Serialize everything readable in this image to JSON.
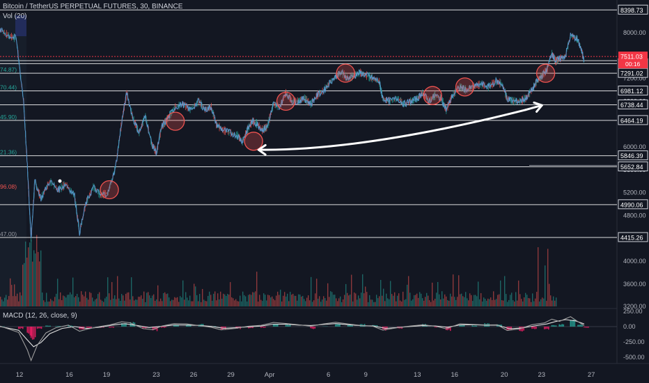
{
  "header": {
    "title": "Bitcoin / TetherUS PERPETUAL FUTURES, 30, BINANCE",
    "volume_label": "Vol (20)",
    "macd_label": "MACD (12, 26, close, 9)"
  },
  "colors": {
    "background": "#131722",
    "up": "#26a69a",
    "down": "#ef5350",
    "price_line": "#5b9bd5",
    "level_line": "#ffffff",
    "macd_line": "#9e9e9e",
    "signal_line": "#e0e0e0",
    "hist_negative": "#e91e63",
    "current_price_tag": "#f23645",
    "marker_circle": "#ef5350"
  },
  "chart_data": [
    {
      "type": "line",
      "name": "price",
      "x_ticks": [
        "12",
        "16",
        "19",
        "23",
        "26",
        "29",
        "Apr",
        "6",
        "9",
        "13",
        "16",
        "20",
        "23",
        "27"
      ],
      "x_tick_days": [
        12,
        16,
        19,
        23,
        26,
        29,
        32,
        37,
        40,
        44,
        47,
        51,
        54,
        58
      ],
      "y_axis_ticks": [
        "8000.00",
        "7600.00",
        "7200.00",
        "6800.00",
        "6000.00",
        "5600.00",
        "5200.00",
        "4800.00",
        "4000.00",
        "3600.00",
        "3200.00"
      ],
      "ylim": [
        3200,
        8400
      ],
      "price_points": [
        [
          10.5,
          8050
        ],
        [
          11.2,
          7950
        ],
        [
          11.8,
          7900
        ],
        [
          12.4,
          6800
        ],
        [
          12.7,
          5650
        ],
        [
          13.0,
          4400
        ],
        [
          13.3,
          5400
        ],
        [
          13.8,
          5100
        ],
        [
          14.5,
          5400
        ],
        [
          15.2,
          5250
        ],
        [
          15.8,
          5350
        ],
        [
          16.5,
          5150
        ],
        [
          16.9,
          4500
        ],
        [
          17.4,
          5000
        ],
        [
          18.0,
          5300
        ],
        [
          18.6,
          5150
        ],
        [
          19.2,
          5200
        ],
        [
          19.8,
          5650
        ],
        [
          20.3,
          6450
        ],
        [
          20.7,
          6950
        ],
        [
          21.2,
          6500
        ],
        [
          21.7,
          6250
        ],
        [
          22.2,
          6550
        ],
        [
          22.7,
          6050
        ],
        [
          23.1,
          5900
        ],
        [
          23.5,
          6350
        ],
        [
          24.0,
          6500
        ],
        [
          24.6,
          6700
        ],
        [
          25.2,
          6750
        ],
        [
          25.8,
          6650
        ],
        [
          26.5,
          6800
        ],
        [
          27.0,
          6650
        ],
        [
          27.5,
          6700
        ],
        [
          27.9,
          6400
        ],
        [
          28.4,
          6300
        ],
        [
          29.0,
          6250
        ],
        [
          29.6,
          6200
        ],
        [
          30.0,
          6100
        ],
        [
          30.4,
          6300
        ],
        [
          30.8,
          6450
        ],
        [
          31.2,
          6400
        ],
        [
          31.6,
          6300
        ],
        [
          32.0,
          6350
        ],
        [
          32.5,
          6750
        ],
        [
          33.0,
          6700
        ],
        [
          33.5,
          6950
        ],
        [
          34.0,
          6800
        ],
        [
          34.5,
          6800
        ],
        [
          35.0,
          6850
        ],
        [
          35.5,
          6750
        ],
        [
          36.0,
          6900
        ],
        [
          36.6,
          7000
        ],
        [
          37.1,
          7150
        ],
        [
          37.6,
          7250
        ],
        [
          38.0,
          7300
        ],
        [
          38.5,
          7200
        ],
        [
          39.0,
          7250
        ],
        [
          39.5,
          7300
        ],
        [
          40.0,
          7250
        ],
        [
          40.5,
          7200
        ],
        [
          41.0,
          7150
        ],
        [
          41.3,
          6850
        ],
        [
          41.8,
          6800
        ],
        [
          42.5,
          6850
        ],
        [
          43.0,
          6750
        ],
        [
          43.6,
          6800
        ],
        [
          44.1,
          6850
        ],
        [
          44.5,
          6950
        ],
        [
          45.0,
          6800
        ],
        [
          45.5,
          6900
        ],
        [
          46.0,
          6850
        ],
        [
          46.4,
          6650
        ],
        [
          46.9,
          6900
        ],
        [
          47.5,
          7050
        ],
        [
          48.0,
          7000
        ],
        [
          48.6,
          7050
        ],
        [
          49.2,
          7100
        ],
        [
          49.8,
          7050
        ],
        [
          50.4,
          7150
        ],
        [
          50.9,
          7100
        ],
        [
          51.3,
          6850
        ],
        [
          51.8,
          6800
        ],
        [
          52.3,
          6800
        ],
        [
          52.8,
          6850
        ],
        [
          53.3,
          7000
        ],
        [
          53.7,
          7150
        ],
        [
          54.1,
          7250
        ],
        [
          54.5,
          7350
        ],
        [
          54.9,
          7650
        ],
        [
          55.2,
          7500
        ],
        [
          55.6,
          7550
        ],
        [
          56.0,
          7600
        ],
        [
          56.4,
          7950
        ],
        [
          56.9,
          7900
        ],
        [
          57.2,
          7750
        ],
        [
          57.5,
          7500
        ]
      ],
      "horizontal_levels": [
        "8398.73",
        "7459.35",
        "7291.02",
        "6981.12",
        "6738.44",
        "6464.19",
        "5846.39",
        "5652.84",
        "4990.06",
        "4415.26"
      ],
      "level_values": [
        8398.73,
        7511.03,
        7459.35,
        7291.02,
        6981.12,
        6738.44,
        6464.19,
        5846.39,
        5652.84,
        4990.06,
        4415.26
      ],
      "current_price": "7511.03",
      "countdown": "00:16",
      "left_fib_labels": [
        "74.87)",
        "70.44)",
        "45.90)",
        "21.36)",
        "96.08)",
        "47.00)"
      ],
      "left_fib_values": [
        7291.02,
        6981.12,
        6464.19,
        5846.39,
        5246,
        4415.26
      ],
      "marker_points": [
        [
          19.3,
          5250
        ],
        [
          24.6,
          6450
        ],
        [
          30.9,
          6100
        ],
        [
          33.5,
          6800
        ],
        [
          38.3,
          7291
        ],
        [
          45.3,
          6900
        ],
        [
          47.9,
          7050
        ],
        [
          54.4,
          7290
        ]
      ],
      "arrows": [
        {
          "from": [
            52.8,
            6650
          ],
          "to": [
            31.3,
            5950
          ]
        },
        {
          "from": [
            52.8,
            6650
          ],
          "to": [
            54.1,
            6730
          ]
        }
      ]
    },
    {
      "type": "bar",
      "name": "volume",
      "series": [
        {
          "name": "Vol (20)",
          "values": []
        }
      ]
    },
    {
      "type": "line",
      "name": "macd",
      "y_axis_ticks": [
        "250.00",
        "0.00",
        "-250.00",
        "-500.00"
      ],
      "ylim": [
        -550,
        300
      ],
      "macd_points": [
        [
          10.5,
          10
        ],
        [
          12.0,
          -100
        ],
        [
          12.7,
          -380
        ],
        [
          13.0,
          -550
        ],
        [
          13.5,
          -300
        ],
        [
          14.2,
          -100
        ],
        [
          15.0,
          -20
        ],
        [
          16.0,
          20
        ],
        [
          16.9,
          -80
        ],
        [
          17.5,
          -40
        ],
        [
          18.5,
          0
        ],
        [
          19.3,
          30
        ],
        [
          20.3,
          80
        ],
        [
          21.0,
          60
        ],
        [
          22.0,
          -30
        ],
        [
          22.8,
          -50
        ],
        [
          23.5,
          10
        ],
        [
          24.5,
          50
        ],
        [
          25.5,
          40
        ],
        [
          26.5,
          20
        ],
        [
          27.5,
          -10
        ],
        [
          28.3,
          -50
        ],
        [
          29.5,
          -30
        ],
        [
          30.5,
          10
        ],
        [
          31.5,
          20
        ],
        [
          32.5,
          70
        ],
        [
          33.5,
          50
        ],
        [
          34.5,
          30
        ],
        [
          35.5,
          10
        ],
        [
          36.5,
          40
        ],
        [
          37.5,
          70
        ],
        [
          38.5,
          40
        ],
        [
          39.5,
          20
        ],
        [
          40.5,
          10
        ],
        [
          41.3,
          -60
        ],
        [
          42.5,
          -20
        ],
        [
          43.5,
          10
        ],
        [
          44.5,
          30
        ],
        [
          45.5,
          10
        ],
        [
          46.4,
          -40
        ],
        [
          47.5,
          50
        ],
        [
          48.5,
          40
        ],
        [
          49.5,
          30
        ],
        [
          50.5,
          30
        ],
        [
          51.3,
          -60
        ],
        [
          52.3,
          -40
        ],
        [
          53.3,
          30
        ],
        [
          54.3,
          60
        ],
        [
          54.9,
          120
        ],
        [
          55.5,
          90
        ],
        [
          56.4,
          160
        ],
        [
          57.0,
          80
        ],
        [
          57.5,
          20
        ]
      ],
      "signal_points": [
        [
          10.5,
          5
        ],
        [
          12.0,
          -60
        ],
        [
          12.7,
          -220
        ],
        [
          13.2,
          -330
        ],
        [
          13.8,
          -260
        ],
        [
          14.5,
          -120
        ],
        [
          15.5,
          -30
        ],
        [
          16.5,
          0
        ],
        [
          17.5,
          -30
        ],
        [
          18.5,
          -10
        ],
        [
          19.5,
          20
        ],
        [
          20.5,
          50
        ],
        [
          21.5,
          20
        ],
        [
          22.5,
          -20
        ],
        [
          23.5,
          0
        ],
        [
          24.5,
          30
        ],
        [
          25.5,
          30
        ],
        [
          26.5,
          15
        ],
        [
          27.5,
          0
        ],
        [
          28.5,
          -30
        ],
        [
          29.5,
          -20
        ],
        [
          30.5,
          0
        ],
        [
          31.5,
          10
        ],
        [
          32.5,
          40
        ],
        [
          33.5,
          40
        ],
        [
          34.5,
          25
        ],
        [
          35.5,
          15
        ],
        [
          36.5,
          30
        ],
        [
          37.5,
          50
        ],
        [
          38.5,
          35
        ],
        [
          39.5,
          20
        ],
        [
          40.5,
          10
        ],
        [
          41.5,
          -30
        ],
        [
          42.5,
          -15
        ],
        [
          43.5,
          5
        ],
        [
          44.5,
          20
        ],
        [
          45.5,
          10
        ],
        [
          46.5,
          -15
        ],
        [
          47.5,
          25
        ],
        [
          48.5,
          30
        ],
        [
          49.5,
          25
        ],
        [
          50.5,
          20
        ],
        [
          51.5,
          -30
        ],
        [
          52.5,
          -20
        ],
        [
          53.5,
          15
        ],
        [
          54.5,
          45
        ],
        [
          55.2,
          80
        ],
        [
          56.0,
          110
        ],
        [
          56.8,
          90
        ],
        [
          57.5,
          40
        ]
      ]
    }
  ]
}
